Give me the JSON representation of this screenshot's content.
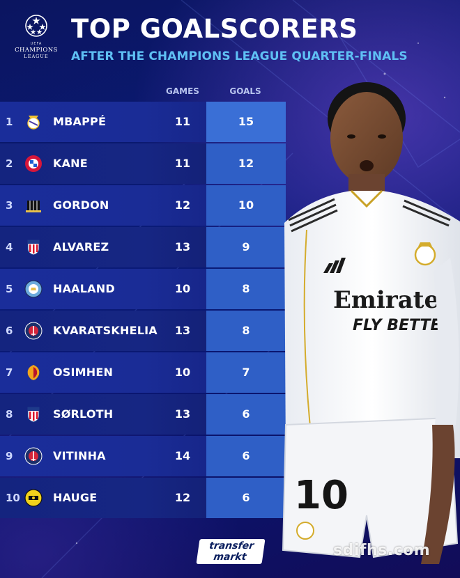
{
  "header": {
    "logo_text": {
      "uefa": "UEFA",
      "line1": "CHAMPIONS",
      "line2": "LEAGUE"
    },
    "title": "TOP GOALSCORERS",
    "subtitle": "AFTER THE CHAMPIONS LEAGUE QUARTER-FINALS"
  },
  "columns": {
    "games": "GAMES",
    "goals": "GOALS"
  },
  "rows": [
    {
      "rank": "1",
      "name": "MBAPPÉ",
      "games": "11",
      "goals": "15",
      "crest": "real-madrid-crest-icon"
    },
    {
      "rank": "2",
      "name": "KANE",
      "games": "11",
      "goals": "12",
      "crest": "bayern-crest-icon"
    },
    {
      "rank": "3",
      "name": "GORDON",
      "games": "12",
      "goals": "10",
      "crest": "newcastle-crest-icon"
    },
    {
      "rank": "4",
      "name": "ALVAREZ",
      "games": "13",
      "goals": "9",
      "crest": "atletico-crest-icon"
    },
    {
      "rank": "5",
      "name": "HAALAND",
      "games": "10",
      "goals": "8",
      "crest": "man-city-crest-icon"
    },
    {
      "rank": "6",
      "name": "KVARATSKHELIA",
      "games": "13",
      "goals": "8",
      "crest": "psg-crest-icon"
    },
    {
      "rank": "7",
      "name": "OSIMHEN",
      "games": "10",
      "goals": "7",
      "crest": "galatasaray-crest-icon"
    },
    {
      "rank": "8",
      "name": "SØRLOTH",
      "games": "13",
      "goals": "6",
      "crest": "atletico-crest-icon"
    },
    {
      "rank": "9",
      "name": "VITINHA",
      "games": "14",
      "goals": "6",
      "crest": "psg-crest-icon"
    },
    {
      "rank": "10",
      "name": "HAUGE",
      "games": "12",
      "goals": "6",
      "crest": "bodo-glimt-crest-icon"
    }
  ],
  "player_shirt": {
    "sponsor": "Emirates",
    "tagline": "FLY BETTER",
    "number": "10"
  },
  "footer": {
    "brand_line1": "transfer",
    "brand_line2": "markt",
    "watermark": "sdifhs.com"
  },
  "colors": {
    "background": "#0a1b78",
    "goals_column": "#2f5fc6",
    "subtitle": "#5fc0f4"
  }
}
